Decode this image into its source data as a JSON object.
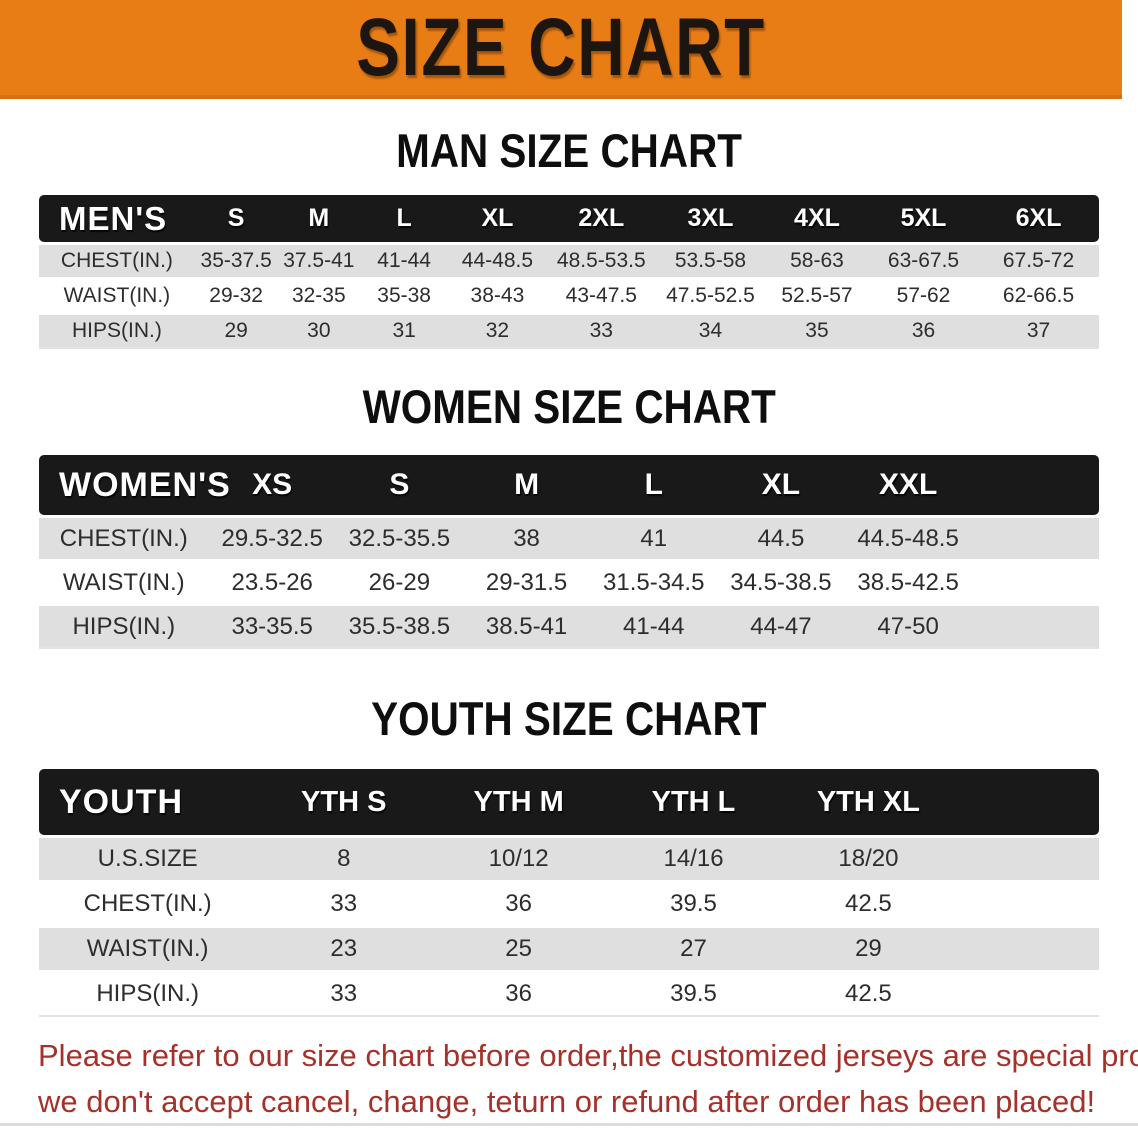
{
  "banner": {
    "title": "SIZE CHART"
  },
  "sections": [
    {
      "heading": "MAN SIZE CHART",
      "group_label": "MEN'S",
      "columns": [
        "S",
        "M",
        "L",
        "XL",
        "2XL",
        "3XL",
        "4XL",
        "5XL",
        "6XL"
      ],
      "rows": [
        {
          "label": "CHEST(IN.)",
          "values": [
            "35-37.5",
            "37.5-41",
            "41-44",
            "44-48.5",
            "48.5-53.5",
            "53.5-58",
            "58-63",
            "63-67.5",
            "67.5-72"
          ]
        },
        {
          "label": "WAIST(IN.)",
          "values": [
            "29-32",
            "32-35",
            "35-38",
            "38-43",
            "43-47.5",
            "47.5-52.5",
            "52.5-57",
            "57-62",
            "62-66.5"
          ]
        },
        {
          "label": "HIPS(IN.)",
          "values": [
            "29",
            "30",
            "31",
            "32",
            "33",
            "34",
            "35",
            "36",
            "37"
          ]
        }
      ]
    },
    {
      "heading": "WOMEN SIZE CHART",
      "group_label": "WOMEN'S",
      "columns": [
        "XS",
        "S",
        "M",
        "L",
        "XL",
        "XXL"
      ],
      "rows": [
        {
          "label": "CHEST(IN.)",
          "values": [
            "29.5-32.5",
            "32.5-35.5",
            "38",
            "41",
            "44.5",
            "44.5-48.5"
          ]
        },
        {
          "label": "WAIST(IN.)",
          "values": [
            "23.5-26",
            "26-29",
            "29-31.5",
            "31.5-34.5",
            "34.5-38.5",
            "38.5-42.5"
          ]
        },
        {
          "label": "HIPS(IN.)",
          "values": [
            "33-35.5",
            "35.5-38.5",
            "38.5-41",
            "41-44",
            "44-47",
            "47-50"
          ]
        }
      ]
    },
    {
      "heading": "YOUTH SIZE CHART",
      "group_label": "YOUTH",
      "columns": [
        "YTH S",
        "YTH M",
        "YTH L",
        "YTH XL"
      ],
      "rows": [
        {
          "label": "U.S.SIZE",
          "values": [
            "8",
            "10/12",
            "14/16",
            "18/20"
          ]
        },
        {
          "label": "CHEST(IN.)",
          "values": [
            "33",
            "36",
            "39.5",
            "42.5"
          ]
        },
        {
          "label": "WAIST(IN.)",
          "values": [
            "23",
            "25",
            "27",
            "29"
          ]
        },
        {
          "label": "HIPS(IN.)",
          "values": [
            "33",
            "36",
            "39.5",
            "42.5"
          ]
        }
      ]
    }
  ],
  "footer": {
    "line1": "Please refer to our size chart before order,the customized jerseys are special products,",
    "line2": "we don't accept cancel, change, teturn or refund after order has been placed!"
  },
  "colors": {
    "banner_bg": "#E87D16",
    "header_bar": "#191919",
    "row_gray": "#DFDFDF",
    "footer_red": "#a5322a"
  }
}
